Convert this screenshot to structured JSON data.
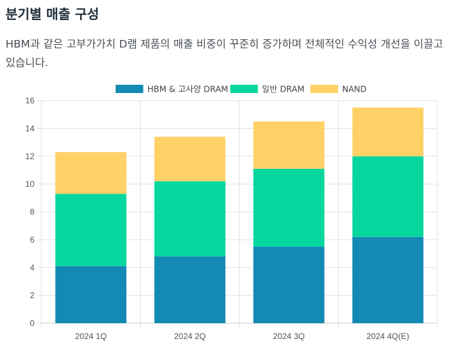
{
  "header": {
    "title": "분기별 매출 구성",
    "description": "HBM과 같은 고부가가치 D램 제품의 매출 비중이 꾸준히 증가하며 전체적인 수익성 개선을 이끌고 있습니다."
  },
  "chart_data": {
    "type": "bar",
    "stacked": true,
    "categories": [
      "2024 1Q",
      "2024 2Q",
      "2024 3Q",
      "2024 4Q(E)"
    ],
    "series": [
      {
        "name": "HBM & 고사양 DRAM",
        "color": "#138ab3",
        "values": [
          4.1,
          4.8,
          5.5,
          6.2
        ]
      },
      {
        "name": "일반 DRAM",
        "color": "#06d79f",
        "values": [
          5.2,
          5.4,
          5.6,
          5.8
        ]
      },
      {
        "name": "NAND",
        "color": "#ffd166",
        "values": [
          3.0,
          3.2,
          3.4,
          3.5
        ]
      }
    ],
    "ylim": [
      0,
      16
    ],
    "yticks": [
      0,
      2,
      4,
      6,
      8,
      10,
      12,
      14,
      16
    ],
    "grid": true,
    "legend_position": "top-center"
  }
}
